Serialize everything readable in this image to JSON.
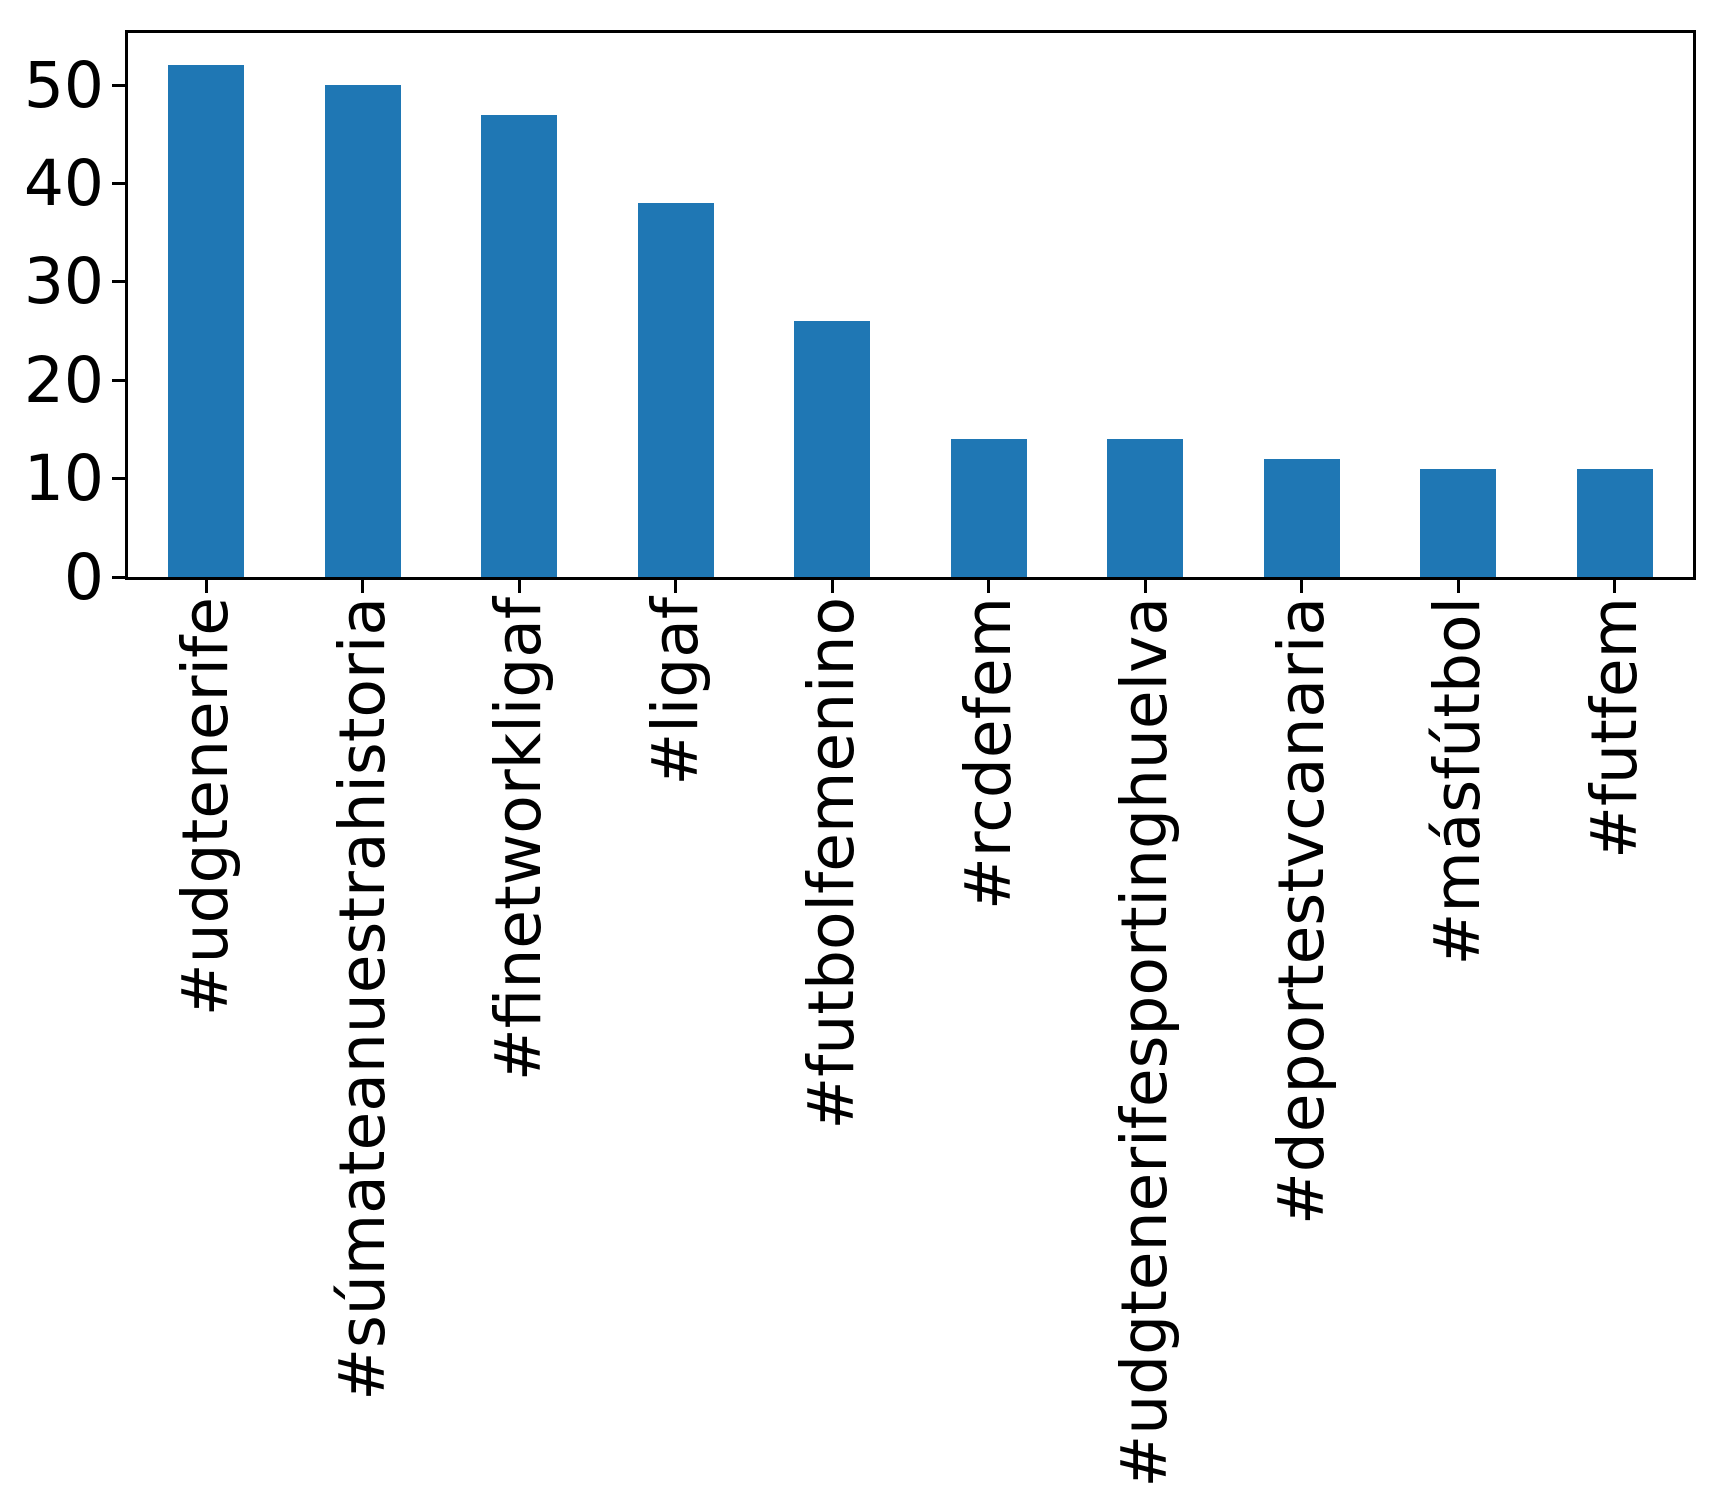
{
  "chart_data": {
    "type": "bar",
    "categories": [
      "#udgtenerife",
      "#súmateanuestrahistoria",
      "#finetworkligaf",
      "#ligaf",
      "#futbolfemenino",
      "#rcdefem",
      "#udgtenerifesportinghuelva",
      "#deportestvcanaria",
      "#másfútbol",
      "#futfem"
    ],
    "values": [
      52,
      50,
      47,
      38,
      26,
      14,
      14,
      12,
      11,
      11
    ],
    "title": "",
    "xlabel": "",
    "ylabel": "",
    "yticks": [
      0,
      10,
      20,
      30,
      40,
      50
    ],
    "ylim": [
      0,
      55.3
    ],
    "bar_color": "#1f77b4",
    "axis_color": "#000000",
    "background_color": "#ffffff",
    "grid": false,
    "legend_position": "none",
    "x_label_rotation_degrees": 90
  }
}
